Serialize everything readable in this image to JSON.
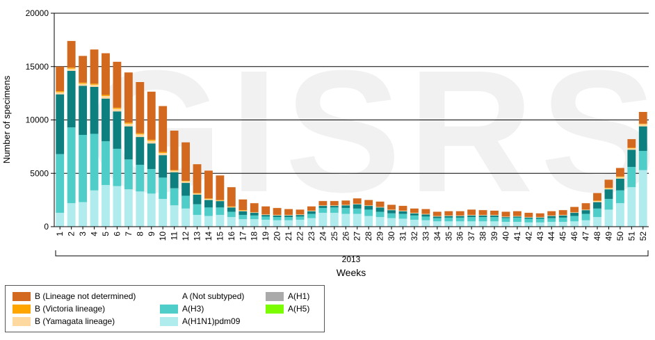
{
  "chart_data": {
    "type": "bar",
    "stacked": true,
    "title": "",
    "ylabel": "Number of specimens",
    "xlabel": "Weeks",
    "year_label": "2013",
    "ylim": [
      0,
      20000
    ],
    "yticks": [
      "0",
      "5000",
      "10000",
      "15000",
      "20000"
    ],
    "categories": [
      "1",
      "2",
      "3",
      "4",
      "5",
      "6",
      "7",
      "8",
      "9",
      "10",
      "11",
      "12",
      "13",
      "14",
      "15",
      "16",
      "17",
      "18",
      "19",
      "20",
      "21",
      "22",
      "23",
      "24",
      "25",
      "26",
      "27",
      "28",
      "29",
      "30",
      "31",
      "32",
      "33",
      "34",
      "35",
      "36",
      "37",
      "38",
      "39",
      "40",
      "41",
      "42",
      "43",
      "44",
      "45",
      "46",
      "47",
      "48",
      "49",
      "50",
      "51",
      "52"
    ],
    "series": [
      {
        "name": "A(H1N1)pdm09",
        "color": "#b0ecee",
        "values": [
          1300,
          2200,
          2300,
          3400,
          3900,
          3800,
          3500,
          3300,
          3100,
          2600,
          2000,
          1700,
          1100,
          1000,
          1100,
          900,
          700,
          700,
          650,
          600,
          600,
          650,
          800,
          1300,
          1300,
          1200,
          1200,
          1000,
          900,
          800,
          750,
          650,
          600,
          500,
          500,
          500,
          500,
          500,
          500,
          450,
          450,
          400,
          400,
          450,
          450,
          500,
          600,
          900,
          1600,
          2200,
          3700,
          5300
        ]
      },
      {
        "name": "A(H3)",
        "color": "#4ecdc9",
        "values": [
          5500,
          7100,
          6300,
          5300,
          4100,
          3500,
          2800,
          2500,
          2300,
          2000,
          1600,
          1200,
          1000,
          800,
          700,
          500,
          400,
          350,
          300,
          300,
          300,
          300,
          400,
          450,
          500,
          550,
          500,
          600,
          500,
          450,
          450,
          400,
          350,
          300,
          350,
          350,
          400,
          400,
          400,
          350,
          400,
          350,
          350,
          350,
          400,
          500,
          600,
          800,
          1000,
          1200,
          1900,
          1800
        ]
      },
      {
        "name": "A(Not subtyped)",
        "color": "#0d7f7f",
        "values": [
          5600,
          5300,
          4600,
          4400,
          4000,
          3500,
          3100,
          2600,
          2400,
          2100,
          1500,
          1200,
          900,
          700,
          600,
          400,
          350,
          250,
          150,
          150,
          150,
          150,
          250,
          200,
          150,
          250,
          400,
          350,
          400,
          300,
          250,
          200,
          200,
          150,
          150,
          150,
          150,
          150,
          150,
          100,
          100,
          100,
          100,
          200,
          200,
          300,
          350,
          600,
          900,
          1100,
          1600,
          2300
        ]
      },
      {
        "name": "A(H1)",
        "color": "#aaaaaa",
        "values": [
          0,
          0,
          0,
          0,
          0,
          0,
          0,
          0,
          0,
          0,
          0,
          0,
          0,
          0,
          0,
          0,
          0,
          0,
          0,
          0,
          0,
          0,
          0,
          0,
          0,
          0,
          0,
          0,
          0,
          0,
          0,
          0,
          0,
          0,
          0,
          0,
          0,
          0,
          0,
          0,
          0,
          0,
          0,
          0,
          0,
          0,
          0,
          0,
          0,
          0,
          0,
          0
        ]
      },
      {
        "name": "A(H5)",
        "color": "#7cfc00",
        "values": [
          0,
          0,
          0,
          0,
          0,
          0,
          0,
          0,
          0,
          0,
          0,
          0,
          0,
          0,
          0,
          0,
          0,
          0,
          0,
          0,
          0,
          0,
          0,
          0,
          0,
          0,
          0,
          0,
          0,
          0,
          0,
          0,
          0,
          0,
          0,
          0,
          0,
          0,
          0,
          0,
          0,
          0,
          0,
          0,
          0,
          0,
          0,
          0,
          0,
          0,
          0,
          0
        ]
      },
      {
        "name": "B (Yamagata lineage)",
        "color": "#fdd9a0",
        "values": [
          200,
          200,
          200,
          200,
          250,
          250,
          250,
          250,
          250,
          200,
          150,
          150,
          100,
          100,
          50,
          50,
          50,
          50,
          50,
          50,
          50,
          50,
          50,
          50,
          50,
          50,
          50,
          50,
          50,
          50,
          50,
          50,
          50,
          50,
          50,
          50,
          50,
          50,
          50,
          50,
          50,
          50,
          50,
          50,
          50,
          50,
          50,
          100,
          100,
          150,
          150,
          200
        ]
      },
      {
        "name": "B (Victoria lineage)",
        "color": "#ffa500",
        "values": [
          100,
          100,
          100,
          100,
          100,
          100,
          100,
          100,
          100,
          100,
          50,
          50,
          50,
          50,
          50,
          50,
          50,
          0,
          0,
          0,
          0,
          0,
          0,
          0,
          0,
          0,
          0,
          0,
          0,
          0,
          0,
          0,
          0,
          0,
          0,
          0,
          0,
          0,
          0,
          0,
          0,
          0,
          0,
          0,
          0,
          0,
          0,
          50,
          50,
          50,
          50,
          50
        ]
      },
      {
        "name": "B (Lineage not determined)",
        "color": "#d2691e",
        "values": [
          2300,
          2500,
          2500,
          3200,
          3900,
          4300,
          4700,
          4800,
          4500,
          4300,
          3700,
          3600,
          2700,
          2600,
          2300,
          1800,
          1000,
          850,
          750,
          650,
          550,
          450,
          400,
          400,
          400,
          400,
          500,
          500,
          500,
          450,
          450,
          400,
          450,
          400,
          400,
          400,
          500,
          450,
          400,
          450,
          450,
          400,
          350,
          400,
          450,
          500,
          600,
          700,
          750,
          800,
          800,
          1100
        ]
      }
    ],
    "legend_order": [
      "B (Lineage not determined)",
      "A (Not subtyped)",
      "A(H1)",
      "B (Victoria lineage)",
      "A(H3)",
      "A(H5)",
      "B (Yamagata lineage)",
      "A(H1N1)pdm09"
    ],
    "legend_labels": {
      "B (Lineage not determined)": "B (Lineage not determined)",
      "A (Not subtyped)": "A (Not subtyped)",
      "A(H1)": "A(H1)",
      "B (Victoria lineage)": "B (Victoria lineage)",
      "A(H3)": "A(H3)",
      "A(H5)": "A(H5)",
      "B (Yamagata lineage)": "B (Yamagata lineage)",
      "A(H1N1)pdm09": "A(H1N1)pdm09"
    },
    "watermark": "GISRS",
    "grid": true,
    "legend_position": "bottom-left"
  }
}
